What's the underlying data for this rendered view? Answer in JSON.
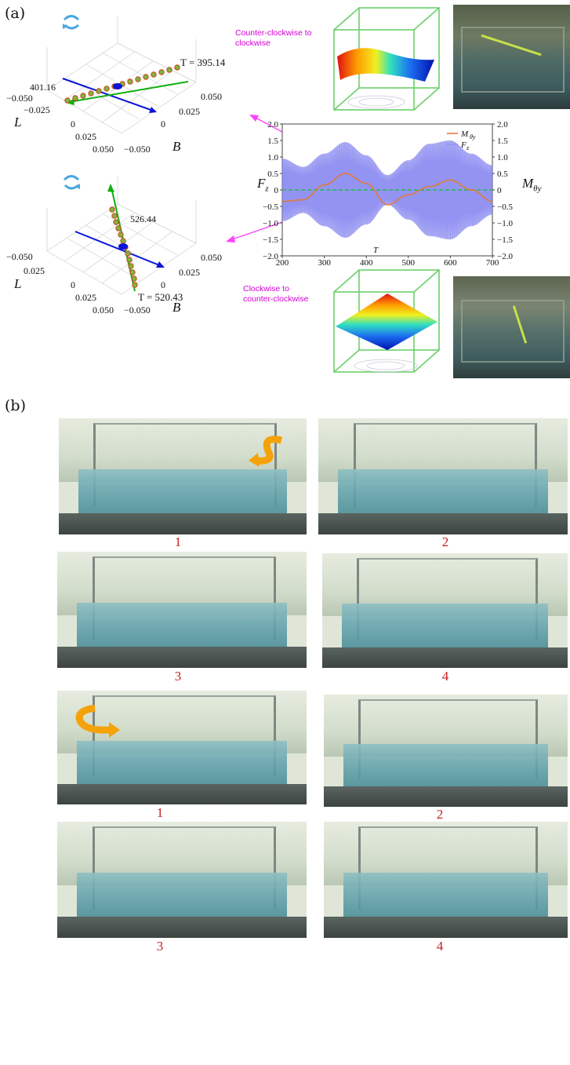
{
  "panel_a": {
    "label": "(a)",
    "plot_top": {
      "t_end_label": "T = 395.14",
      "t_start_label": "401.16",
      "axis_L": "L",
      "axis_B": "B",
      "l_ticks": [
        "−0.050",
        "−0.025",
        "0",
        "0.025",
        "0.050"
      ],
      "b_ticks": [
        "−0.050",
        "0",
        "0.025",
        "0.050"
      ]
    },
    "plot_bottom": {
      "t_end_label": "T = 520.43",
      "t_start_label": "526.44",
      "axis_L": "L",
      "axis_B": "B",
      "l_ticks": [
        "−0.050",
        "0.025",
        "0",
        "0.025",
        "0.050"
      ],
      "b_ticks": [
        "−0.050",
        "0",
        "0.025",
        "0.050"
      ]
    },
    "ccw_label_line1": "Counter-clockwise to",
    "ccw_label_line2": "clockwise",
    "cw_label_line1": "Clockwise to",
    "cw_label_line2": "counter-clockwise"
  },
  "chart_data": {
    "type": "line",
    "xlabel": "T",
    "ylabel_left": "F",
    "ylabel_left_sub": "z",
    "ylabel_right": "M",
    "ylabel_right_sub": "θy",
    "xlim": [
      200,
      700
    ],
    "ylim": [
      -2.0,
      2.0
    ],
    "x_ticks": [
      "200",
      "300",
      "400",
      "500",
      "600",
      "700"
    ],
    "y_ticks": [
      "2.0",
      "1.5",
      "1.0",
      "0.5",
      "0",
      "−0.5",
      "−1.0",
      "−1.5",
      "−2.0"
    ],
    "legend_position": "top-right",
    "series": [
      {
        "name": "M",
        "name_sub": "θy",
        "color": "#e07b39",
        "x": [
          200,
          250,
          300,
          350,
          400,
          450,
          500,
          550,
          600,
          650,
          700
        ],
        "y": [
          -0.35,
          -0.3,
          0.15,
          0.5,
          0.2,
          -0.45,
          -0.15,
          0.1,
          0.3,
          0.0,
          -0.35
        ]
      },
      {
        "name": "F",
        "name_sub": "z",
        "color": "#8080f0",
        "x": [
          200,
          250,
          300,
          350,
          400,
          450,
          500,
          550,
          600,
          650,
          700
        ],
        "amplitude": [
          0.95,
          0.7,
          1.1,
          1.45,
          1.05,
          0.45,
          0.9,
          1.4,
          1.5,
          1.1,
          0.75
        ]
      }
    ],
    "reference_line": {
      "y": 0.0,
      "color": "#3cb371"
    }
  },
  "panel_b": {
    "label": "(b)",
    "captions_top": [
      "1",
      "2",
      "3",
      "4"
    ],
    "captions_bottom": [
      "1",
      "2",
      "3",
      "4"
    ]
  }
}
